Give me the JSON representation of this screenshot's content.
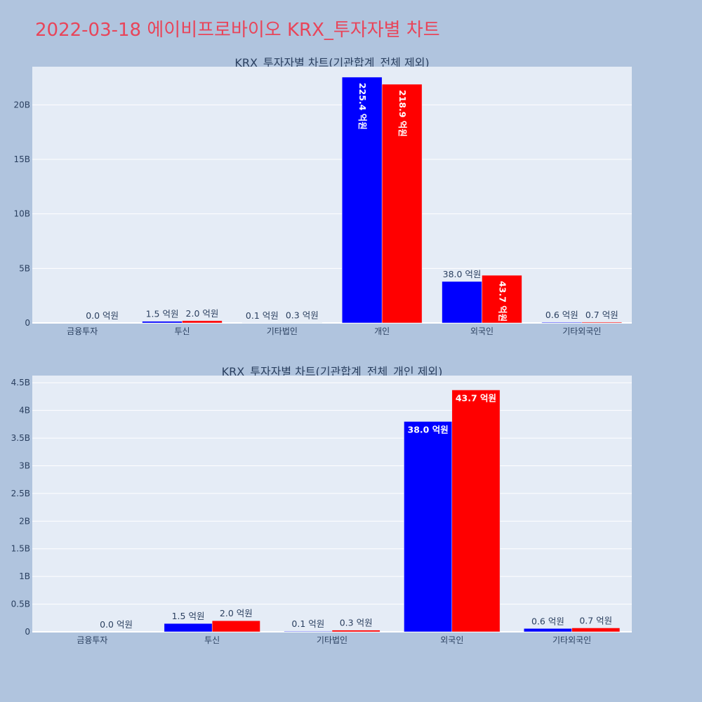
{
  "page": {
    "title": "2022-03-18 에이비프로바이오 KRX_투자자별 차트"
  },
  "colors": {
    "background": "#b0c4de",
    "plot_bg": "#e5ecf6",
    "series_1": "#0000ff",
    "series_2": "#ff0000",
    "title": "#e8455a"
  },
  "chart_data": [
    {
      "type": "bar",
      "title": "KRX_투자자별 차트(기관합계_전체 제외)",
      "categories": [
        "금융투자",
        "투신",
        "기타법인",
        "개인",
        "외국인",
        "기타외국인"
      ],
      "series": [
        {
          "values": [
            0.0,
            0.15,
            0.01,
            22.54,
            3.8,
            0.06
          ],
          "labels": [
            "",
            "1.5 억원",
            "0.1 억원",
            "225.4 억원",
            "38.0 억원",
            "0.6 억원"
          ]
        },
        {
          "values": [
            0.0,
            0.2,
            0.03,
            21.89,
            4.37,
            0.07
          ],
          "labels": [
            "0.0 억원",
            "2.0 억원",
            "0.3 억원",
            "218.9 억원",
            "43.7 억원",
            "0.7 억원"
          ]
        }
      ],
      "ylim": [
        0,
        23.5
      ],
      "yticks": [
        0,
        5,
        10,
        15,
        20
      ],
      "ytick_labels": [
        "0",
        "5B",
        "10B",
        "15B",
        "20B"
      ],
      "label_style": "vertical"
    },
    {
      "type": "bar",
      "title": "KRX_투자자별 차트(기관합계_전체_개인 제외)",
      "categories": [
        "금융투자",
        "투신",
        "기타법인",
        "외국인",
        "기타외국인"
      ],
      "series": [
        {
          "values": [
            0.0,
            0.15,
            0.01,
            3.8,
            0.06
          ],
          "labels": [
            "",
            "1.5 억원",
            "0.1 억원",
            "38.0 억원",
            "0.6 억원"
          ]
        },
        {
          "values": [
            0.0,
            0.2,
            0.03,
            4.37,
            0.07
          ],
          "labels": [
            "0.0 억원",
            "2.0 억원",
            "0.3 억원",
            "43.7 억원",
            "0.7 억원"
          ]
        }
      ],
      "ylim": [
        0,
        4.63
      ],
      "yticks": [
        0,
        0.5,
        1,
        1.5,
        2,
        2.5,
        3,
        3.5,
        4,
        4.5
      ],
      "ytick_labels": [
        "0",
        "0.5B",
        "1B",
        "1.5B",
        "2B",
        "2.5B",
        "3B",
        "3.5B",
        "4B",
        "4.5B"
      ],
      "label_style": "horizontal"
    }
  ]
}
